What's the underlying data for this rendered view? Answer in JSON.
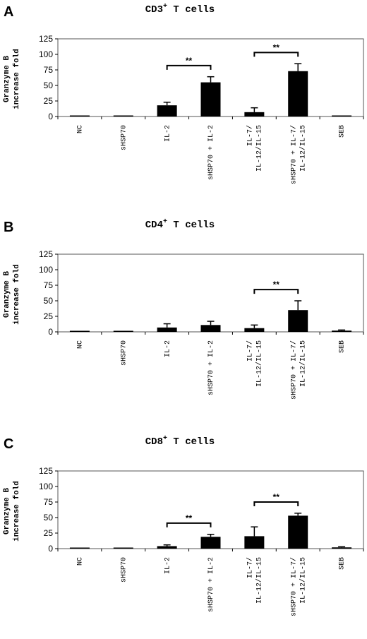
{
  "y_axis_label": [
    "Granzyme B",
    "increase fold"
  ],
  "chart_data": [
    {
      "panel": "A",
      "type": "bar",
      "title": "CD3",
      "title_sup": "+",
      "title_rest": " T cells",
      "categories": [
        [
          "NC"
        ],
        [
          "sHSP70"
        ],
        [
          "IL-2"
        ],
        [
          "sHSP70 + IL-2"
        ],
        [
          "IL-7/",
          "IL-12/IL-15"
        ],
        [
          "sHSP70 + IL-7/",
          "IL-12/IL-15"
        ],
        [
          "SEB"
        ]
      ],
      "values": [
        1,
        1,
        18,
        55,
        7,
        73,
        1
      ],
      "errors": [
        0,
        0,
        5,
        9,
        7,
        12,
        0
      ],
      "yticks": [
        "0",
        "25",
        "50",
        "75",
        "100",
        "125"
      ],
      "ylim": [
        0,
        125
      ],
      "significance": [
        {
          "from": 2,
          "to": 3,
          "label": "**"
        },
        {
          "from": 4,
          "to": 5,
          "label": "**"
        }
      ]
    },
    {
      "panel": "B",
      "type": "bar",
      "title": "CD4",
      "title_sup": "+",
      "title_rest": " T cells",
      "categories": [
        [
          "NC"
        ],
        [
          "sHSP70"
        ],
        [
          "IL-2"
        ],
        [
          "sHSP70 + IL-2"
        ],
        [
          "IL-7/",
          "IL-12/IL-15"
        ],
        [
          "sHSP70 + IL-7/",
          "IL-12/IL-15"
        ],
        [
          "SEB"
        ]
      ],
      "values": [
        1,
        1,
        7,
        11,
        6,
        35,
        2
      ],
      "errors": [
        0,
        0,
        6,
        6,
        5,
        15,
        1
      ],
      "yticks": [
        "0",
        "25",
        "50",
        "75",
        "100",
        "125"
      ],
      "ylim": [
        0,
        125
      ],
      "significance": [
        {
          "from": 4,
          "to": 5,
          "label": "**"
        }
      ]
    },
    {
      "panel": "C",
      "type": "bar",
      "title": "CD8",
      "title_sup": "+",
      "title_rest": " T cells",
      "categories": [
        [
          "NC"
        ],
        [
          "sHSP70"
        ],
        [
          "IL-2"
        ],
        [
          "sHSP70 + IL-2"
        ],
        [
          "IL-7/",
          "IL-12/IL-15"
        ],
        [
          "sHSP70 + IL-7/",
          "IL-12/IL-15"
        ],
        [
          "SEB"
        ]
      ],
      "values": [
        1,
        1,
        4,
        19,
        20,
        53,
        2
      ],
      "errors": [
        0,
        0,
        2,
        4,
        15,
        4,
        1
      ],
      "yticks": [
        "0",
        "25",
        "50",
        "75",
        "100",
        "125"
      ],
      "ylim": [
        0,
        125
      ],
      "significance": [
        {
          "from": 2,
          "to": 3,
          "label": "**"
        },
        {
          "from": 4,
          "to": 5,
          "label": "**"
        }
      ]
    }
  ]
}
